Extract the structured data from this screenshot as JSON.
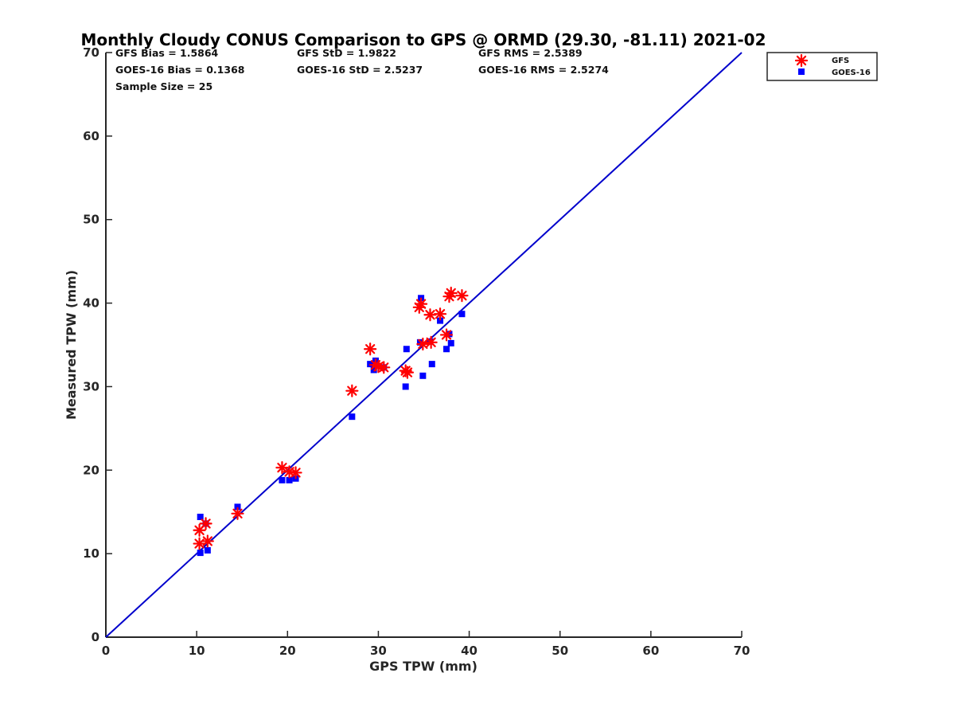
{
  "chart_data": {
    "type": "scatter",
    "title": "Monthly Cloudy CONUS Comparison to GPS @ ORMD (29.30, -81.11) 2021-02",
    "xlabel": "GPS TPW (mm)",
    "ylabel": "Measured TPW (mm)",
    "xlim": [
      0,
      70
    ],
    "ylim": [
      0,
      70
    ],
    "xticks": [
      0,
      10,
      20,
      30,
      40,
      50,
      60,
      70
    ],
    "yticks": [
      0,
      10,
      20,
      30,
      40,
      50,
      60,
      70
    ],
    "grid": false,
    "legend_position": "outside top-right",
    "stats": {
      "gfs_bias": "GFS Bias = 1.5864",
      "gfs_std": "GFS StD = 1.9822",
      "gfs_rms": "GFS RMS = 2.5389",
      "goes_bias": "GOES-16 Bias = 0.1368",
      "goes_std": "GOES-16 StD = 2.5237",
      "goes_rms": "GOES-16 RMS = 2.5274",
      "sample_size": "Sample Size = 25"
    },
    "reference_line": {
      "name": "1:1",
      "x": [
        0,
        70
      ],
      "y": [
        0,
        70
      ],
      "color": "#0000cc"
    },
    "series": [
      {
        "name": "GFS",
        "marker": "asterisk",
        "color": "#ff0000",
        "points": [
          [
            10.3,
            12.8
          ],
          [
            10.3,
            11.2
          ],
          [
            11.0,
            13.6
          ],
          [
            11.2,
            11.5
          ],
          [
            14.5,
            14.8
          ],
          [
            19.4,
            20.3
          ],
          [
            20.2,
            19.8
          ],
          [
            20.9,
            19.7
          ],
          [
            27.1,
            29.5
          ],
          [
            29.1,
            34.5
          ],
          [
            29.7,
            32.6
          ],
          [
            30.6,
            32.3
          ],
          [
            33.0,
            31.9
          ],
          [
            33.2,
            31.7
          ],
          [
            34.5,
            39.5
          ],
          [
            34.7,
            39.9
          ],
          [
            34.9,
            35.1
          ],
          [
            35.8,
            35.3
          ],
          [
            35.7,
            38.6
          ],
          [
            36.8,
            38.7
          ],
          [
            37.5,
            36.2
          ],
          [
            37.8,
            40.8
          ],
          [
            38.0,
            41.2
          ],
          [
            39.2,
            40.9
          ],
          [
            30.0,
            32.4
          ]
        ]
      },
      {
        "name": "GOES-16",
        "marker": "square",
        "color": "#0000ff",
        "points": [
          [
            10.4,
            14.4
          ],
          [
            10.4,
            10.1
          ],
          [
            11.0,
            13.6
          ],
          [
            11.2,
            10.4
          ],
          [
            14.5,
            15.6
          ],
          [
            19.4,
            18.8
          ],
          [
            20.2,
            18.8
          ],
          [
            20.9,
            19.0
          ],
          [
            27.1,
            26.4
          ],
          [
            29.1,
            32.7
          ],
          [
            29.5,
            32.0
          ],
          [
            29.7,
            33.1
          ],
          [
            30.6,
            32.3
          ],
          [
            33.0,
            30.0
          ],
          [
            33.1,
            34.5
          ],
          [
            34.6,
            35.3
          ],
          [
            34.7,
            40.6
          ],
          [
            34.9,
            31.3
          ],
          [
            35.9,
            32.7
          ],
          [
            35.7,
            35.4
          ],
          [
            36.8,
            37.9
          ],
          [
            37.5,
            34.5
          ],
          [
            37.8,
            36.3
          ],
          [
            38.0,
            35.2
          ],
          [
            39.2,
            38.7
          ]
        ]
      }
    ]
  }
}
